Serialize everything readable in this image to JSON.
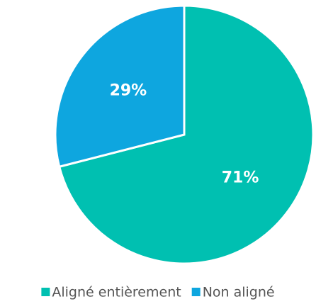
{
  "chart_data": {
    "type": "pie",
    "categories": [
      "Aligné entièrement",
      "Non aligné"
    ],
    "values": [
      71,
      29
    ],
    "value_labels": [
      "71%",
      "29%"
    ],
    "colors": [
      "#00c0b1",
      "#0ea6df"
    ]
  }
}
